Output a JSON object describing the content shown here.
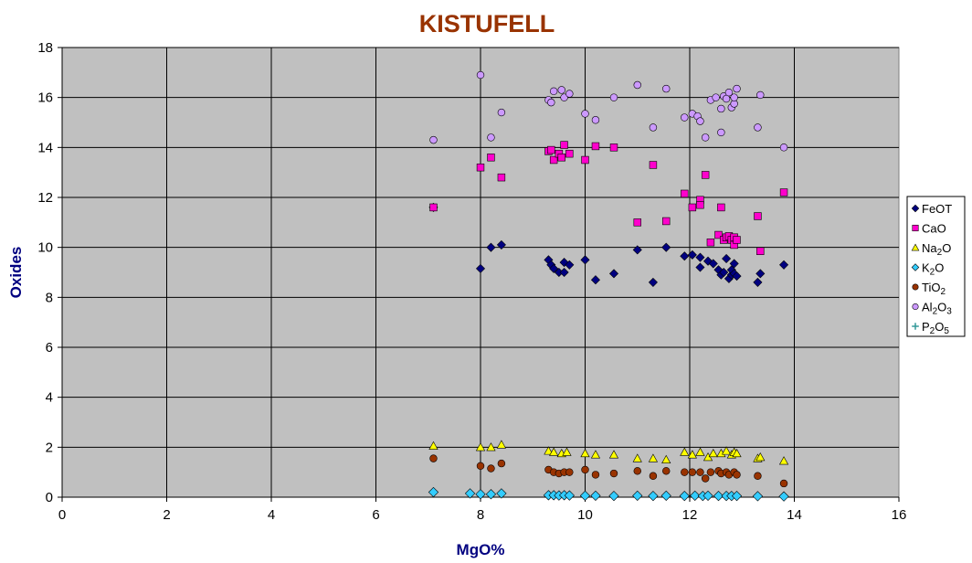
{
  "chart_data": {
    "type": "scatter",
    "title": "KISTUFELL",
    "xlabel": "MgO%",
    "ylabel": "Oxides",
    "xlim": [
      0,
      16
    ],
    "ylim": [
      0,
      18
    ],
    "xticks": [
      "0",
      "2",
      "4",
      "6",
      "8",
      "10",
      "12",
      "14",
      "16"
    ],
    "yticks": [
      "0",
      "2",
      "4",
      "6",
      "8",
      "10",
      "12",
      "14",
      "16",
      "18"
    ],
    "grid": true,
    "plot_background": "#c0c0c0",
    "legend_position": "right",
    "series": [
      {
        "name": "FeOT",
        "name_base": "FeOT",
        "name_subs": [],
        "marker": "diamond",
        "color": "#000080",
        "points": [
          [
            7.1,
            11.6
          ],
          [
            8.0,
            9.15
          ],
          [
            8.2,
            10.0
          ],
          [
            8.4,
            10.1
          ],
          [
            9.3,
            9.5
          ],
          [
            9.35,
            9.3
          ],
          [
            9.4,
            9.15
          ],
          [
            9.5,
            9.0
          ],
          [
            9.6,
            9.4
          ],
          [
            9.6,
            9.0
          ],
          [
            9.7,
            9.3
          ],
          [
            10.0,
            9.5
          ],
          [
            10.2,
            8.7
          ],
          [
            10.55,
            8.95
          ],
          [
            11.0,
            9.9
          ],
          [
            11.3,
            8.6
          ],
          [
            11.55,
            10.0
          ],
          [
            11.9,
            9.65
          ],
          [
            12.05,
            9.7
          ],
          [
            12.2,
            9.6
          ],
          [
            12.2,
            9.2
          ],
          [
            12.35,
            9.45
          ],
          [
            12.45,
            9.35
          ],
          [
            12.55,
            9.1
          ],
          [
            12.6,
            8.9
          ],
          [
            12.65,
            9.0
          ],
          [
            12.7,
            9.55
          ],
          [
            12.75,
            8.75
          ],
          [
            12.8,
            8.9
          ],
          [
            12.8,
            9.1
          ],
          [
            12.85,
            9.35
          ],
          [
            12.85,
            8.95
          ],
          [
            12.9,
            8.85
          ],
          [
            13.3,
            8.6
          ],
          [
            13.35,
            8.95
          ],
          [
            13.8,
            9.3
          ]
        ]
      },
      {
        "name": "CaO",
        "name_base": "CaO",
        "name_subs": [],
        "marker": "square",
        "color": "#ff00cc",
        "points": [
          [
            7.1,
            11.6
          ],
          [
            8.0,
            13.2
          ],
          [
            8.2,
            13.6
          ],
          [
            8.4,
            12.8
          ],
          [
            9.3,
            13.85
          ],
          [
            9.35,
            13.9
          ],
          [
            9.4,
            13.5
          ],
          [
            9.5,
            13.75
          ],
          [
            9.55,
            13.6
          ],
          [
            9.6,
            14.1
          ],
          [
            9.7,
            13.75
          ],
          [
            10.0,
            13.5
          ],
          [
            10.2,
            14.05
          ],
          [
            10.55,
            14.0
          ],
          [
            11.0,
            11.0
          ],
          [
            11.3,
            13.3
          ],
          [
            11.55,
            11.05
          ],
          [
            11.9,
            12.15
          ],
          [
            12.05,
            11.6
          ],
          [
            12.2,
            11.9
          ],
          [
            12.2,
            11.7
          ],
          [
            12.3,
            12.9
          ],
          [
            12.4,
            10.2
          ],
          [
            12.55,
            10.5
          ],
          [
            12.6,
            11.6
          ],
          [
            12.65,
            10.3
          ],
          [
            12.7,
            10.4
          ],
          [
            12.75,
            10.45
          ],
          [
            12.8,
            10.3
          ],
          [
            12.85,
            10.1
          ],
          [
            12.85,
            10.4
          ],
          [
            12.9,
            10.3
          ],
          [
            13.3,
            11.25
          ],
          [
            13.35,
            9.85
          ],
          [
            13.8,
            12.2
          ]
        ]
      },
      {
        "name": "Na2O",
        "name_base": "Na",
        "name_subs": [
          "2",
          "O"
        ],
        "marker": "triangle",
        "color": "#ffff00",
        "points": [
          [
            7.1,
            2.05
          ],
          [
            8.0,
            2.0
          ],
          [
            8.2,
            2.0
          ],
          [
            8.4,
            2.1
          ],
          [
            9.3,
            1.85
          ],
          [
            9.4,
            1.8
          ],
          [
            9.55,
            1.75
          ],
          [
            9.65,
            1.8
          ],
          [
            10.0,
            1.75
          ],
          [
            10.2,
            1.7
          ],
          [
            10.55,
            1.7
          ],
          [
            11.0,
            1.55
          ],
          [
            11.3,
            1.55
          ],
          [
            11.55,
            1.5
          ],
          [
            11.9,
            1.8
          ],
          [
            12.05,
            1.7
          ],
          [
            12.2,
            1.8
          ],
          [
            12.35,
            1.6
          ],
          [
            12.45,
            1.75
          ],
          [
            12.6,
            1.75
          ],
          [
            12.7,
            1.85
          ],
          [
            12.8,
            1.7
          ],
          [
            12.85,
            1.8
          ],
          [
            12.9,
            1.75
          ],
          [
            13.3,
            1.55
          ],
          [
            13.35,
            1.6
          ],
          [
            13.8,
            1.45
          ]
        ]
      },
      {
        "name": "K2O",
        "name_base": "K",
        "name_subs": [
          "2",
          "O"
        ],
        "marker": "diamond",
        "color": "#33ccff",
        "points": [
          [
            7.1,
            0.2
          ],
          [
            7.8,
            0.15
          ],
          [
            8.0,
            0.12
          ],
          [
            8.2,
            0.12
          ],
          [
            8.4,
            0.15
          ],
          [
            9.3,
            0.08
          ],
          [
            9.4,
            0.08
          ],
          [
            9.5,
            0.07
          ],
          [
            9.6,
            0.08
          ],
          [
            9.7,
            0.07
          ],
          [
            10.0,
            0.06
          ],
          [
            10.2,
            0.06
          ],
          [
            10.55,
            0.05
          ],
          [
            11.0,
            0.06
          ],
          [
            11.3,
            0.05
          ],
          [
            11.55,
            0.06
          ],
          [
            11.9,
            0.05
          ],
          [
            12.1,
            0.06
          ],
          [
            12.25,
            0.05
          ],
          [
            12.35,
            0.06
          ],
          [
            12.55,
            0.05
          ],
          [
            12.7,
            0.05
          ],
          [
            12.8,
            0.05
          ],
          [
            12.9,
            0.05
          ],
          [
            13.3,
            0.04
          ],
          [
            13.8,
            0.03
          ]
        ]
      },
      {
        "name": "TiO2",
        "name_base": "Ti",
        "name_subs": [
          "O",
          "2"
        ],
        "marker": "circle",
        "color": "#993300",
        "points": [
          [
            7.1,
            1.55
          ],
          [
            8.0,
            1.25
          ],
          [
            8.2,
            1.15
          ],
          [
            8.4,
            1.35
          ],
          [
            9.3,
            1.1
          ],
          [
            9.4,
            1.0
          ],
          [
            9.5,
            0.95
          ],
          [
            9.6,
            1.0
          ],
          [
            9.7,
            1.0
          ],
          [
            10.0,
            1.1
          ],
          [
            10.2,
            0.9
          ],
          [
            10.55,
            0.95
          ],
          [
            11.0,
            1.05
          ],
          [
            11.3,
            0.85
          ],
          [
            11.55,
            1.05
          ],
          [
            11.9,
            1.0
          ],
          [
            12.05,
            1.0
          ],
          [
            12.2,
            1.0
          ],
          [
            12.3,
            0.75
          ],
          [
            12.4,
            1.0
          ],
          [
            12.55,
            1.05
          ],
          [
            12.6,
            0.95
          ],
          [
            12.7,
            1.0
          ],
          [
            12.75,
            0.9
          ],
          [
            12.85,
            1.0
          ],
          [
            12.9,
            0.9
          ],
          [
            13.3,
            0.85
          ],
          [
            13.8,
            0.55
          ]
        ]
      },
      {
        "name": "Al2O3",
        "name_base": "Al",
        "name_subs": [
          "2",
          "O",
          "3"
        ],
        "marker": "circle",
        "color": "#cc99ff",
        "points": [
          [
            7.1,
            14.3
          ],
          [
            8.0,
            16.9
          ],
          [
            8.2,
            14.4
          ],
          [
            8.4,
            15.4
          ],
          [
            9.3,
            15.9
          ],
          [
            9.35,
            15.8
          ],
          [
            9.4,
            16.25
          ],
          [
            9.55,
            16.3
          ],
          [
            9.6,
            16.0
          ],
          [
            9.7,
            16.15
          ],
          [
            10.0,
            15.35
          ],
          [
            10.2,
            15.1
          ],
          [
            10.55,
            16.0
          ],
          [
            11.0,
            16.5
          ],
          [
            11.3,
            14.8
          ],
          [
            11.55,
            16.35
          ],
          [
            11.9,
            15.2
          ],
          [
            12.05,
            15.35
          ],
          [
            12.15,
            15.25
          ],
          [
            12.2,
            15.05
          ],
          [
            12.3,
            14.4
          ],
          [
            12.4,
            15.9
          ],
          [
            12.5,
            16.0
          ],
          [
            12.6,
            14.6
          ],
          [
            12.6,
            15.55
          ],
          [
            12.65,
            16.05
          ],
          [
            12.7,
            15.95
          ],
          [
            12.75,
            16.2
          ],
          [
            12.8,
            15.6
          ],
          [
            12.85,
            15.75
          ],
          [
            12.85,
            16.0
          ],
          [
            12.9,
            16.35
          ],
          [
            13.3,
            14.8
          ],
          [
            13.35,
            16.1
          ],
          [
            13.8,
            14.0
          ]
        ]
      },
      {
        "name": "P2O5",
        "name_base": "P",
        "name_subs": [
          "2",
          "O",
          "5"
        ],
        "marker": "plus",
        "color": "#339999",
        "points": []
      }
    ]
  }
}
